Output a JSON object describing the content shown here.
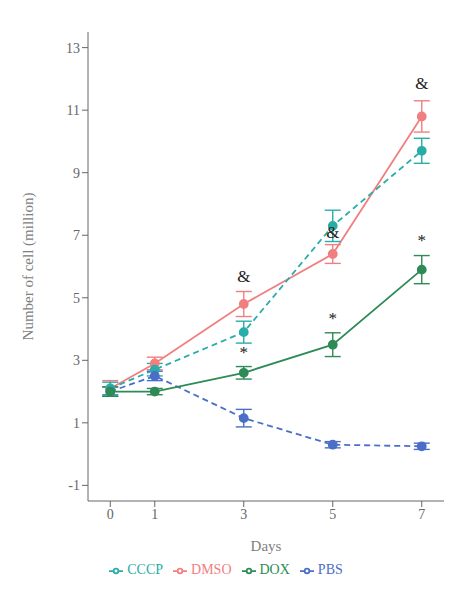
{
  "chart_data": {
    "type": "line",
    "x": [
      0,
      1,
      3,
      5,
      7
    ],
    "xlabel": "Days",
    "ylabel": "Number of cell (million)",
    "xlim": [
      -0.5,
      7.5
    ],
    "xticks": [
      0,
      1,
      3,
      5,
      7
    ],
    "ylim": [
      -1.5,
      13.5
    ],
    "yticks": [
      -1,
      1,
      3,
      5,
      7,
      9,
      11,
      13
    ],
    "legend": "bottom",
    "series": [
      {
        "name": "DMSO",
        "color": "#F08080",
        "line_style": "solid",
        "marker": "circle",
        "values": [
          2.1,
          2.9,
          4.8,
          6.4,
          10.8
        ],
        "errors": [
          0.25,
          0.2,
          0.4,
          0.3,
          0.5
        ]
      },
      {
        "name": "CCCP",
        "color": "#2AADA8",
        "line_style": "dashed",
        "marker": "circle",
        "values": [
          2.1,
          2.7,
          3.9,
          7.3,
          9.7
        ],
        "errors": [
          0.2,
          0.2,
          0.35,
          0.5,
          0.4
        ]
      },
      {
        "name": "PBS",
        "color": "#4B6EC8",
        "line_style": "dashed",
        "marker": "circle",
        "values": [
          2.0,
          2.5,
          1.15,
          0.3,
          0.25
        ],
        "errors": [
          0.15,
          0.15,
          0.28,
          0.1,
          0.1
        ]
      },
      {
        "name": "DOX",
        "color": "#2E8B57",
        "line_style": "solid",
        "marker": "circle",
        "values": [
          2.0,
          2.0,
          2.6,
          3.5,
          5.9
        ],
        "errors": [
          0.15,
          0.1,
          0.2,
          0.38,
          0.45
        ]
      }
    ],
    "annotations": [
      {
        "text": "&",
        "x": 3,
        "y": 5.45,
        "color": "#222222"
      },
      {
        "text": "&",
        "x": 5,
        "y": 6.85,
        "color": "#222222"
      },
      {
        "text": "&",
        "x": 7,
        "y": 11.6,
        "color": "#222222"
      },
      {
        "text": "*",
        "x": 3,
        "y": 3.0,
        "color": "#222222"
      },
      {
        "text": "*",
        "x": 5,
        "y": 4.1,
        "color": "#222222"
      },
      {
        "text": "*",
        "x": 7,
        "y": 6.6,
        "color": "#222222"
      }
    ]
  }
}
